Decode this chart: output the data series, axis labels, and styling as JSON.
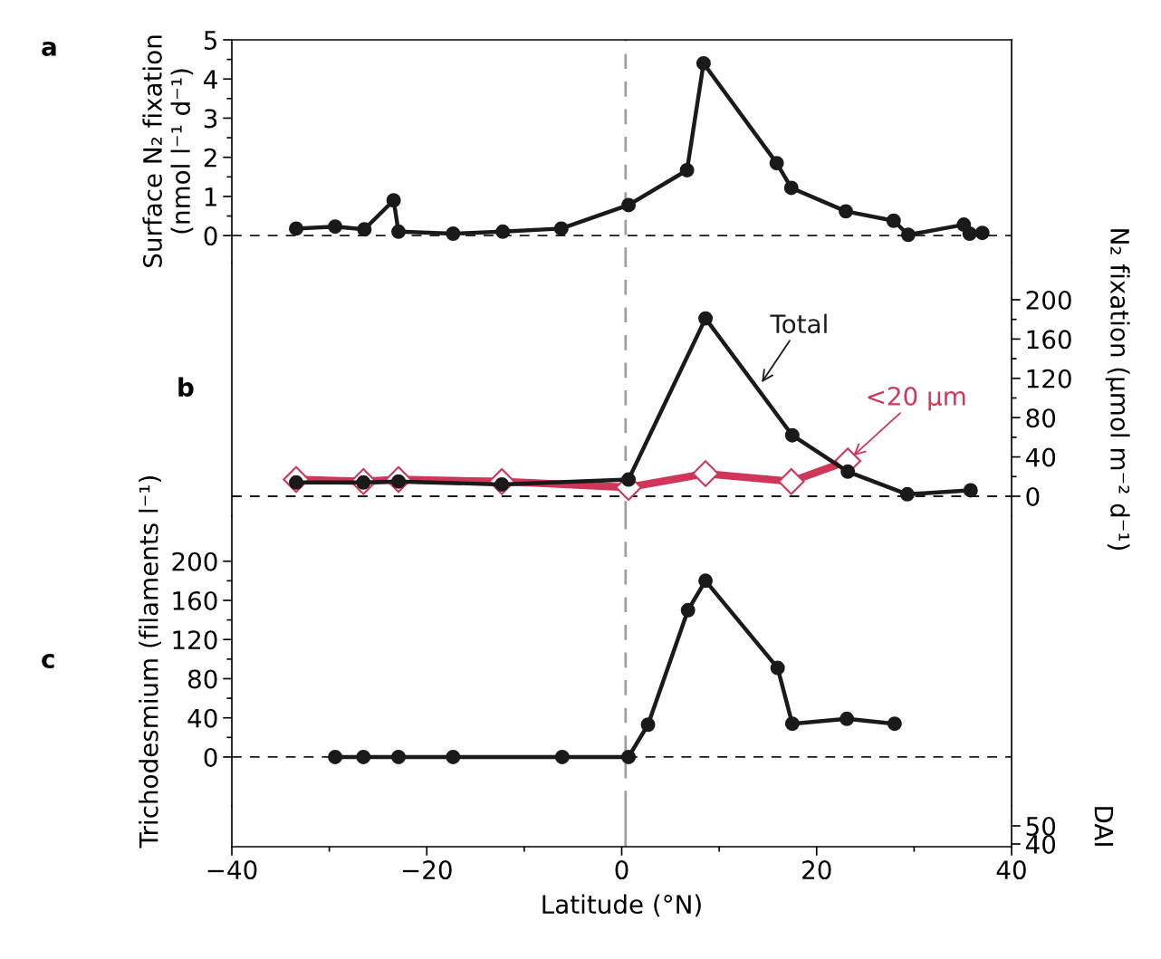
{
  "chart_data": [
    {
      "type": "line",
      "title": "a",
      "ylabel": "Surface N₂ fixation\n(nmol l⁻¹ d⁻¹)",
      "xlim": [
        -40,
        40
      ],
      "ylim": [
        -0.69,
        5
      ],
      "yticks": [
        0,
        {
          "value": 0.5,
          "label": null
        },
        1,
        {
          "value": 1.5,
          "label": null
        },
        2,
        {
          "value": 2.5,
          "label": null
        },
        3,
        {
          "value": 3.5,
          "label": null
        },
        4,
        {
          "value": 4.5,
          "label": null
        },
        5
      ],
      "tick_labels": "y",
      "marker": "circle",
      "series": [
        {
          "color": "#1a1a1a",
          "x": [
            -33.4,
            -29.4,
            -26.4,
            -23.4,
            -22.9,
            -17.3,
            -12.2,
            -6.2,
            0.7,
            6.7,
            8.4,
            15.9,
            17.4,
            23.0,
            27.9,
            29.4,
            35.1,
            35.7,
            37.0
          ],
          "values": [
            0.18,
            0.23,
            0.16,
            0.9,
            0.1,
            0.05,
            0.1,
            0.18,
            0.78,
            1.67,
            4.4,
            1.85,
            1.22,
            0.62,
            0.38,
            0.02,
            0.28,
            0.05,
            0.07
          ]
        }
      ],
      "ref_lines": [
        {
          "axis": "y",
          "value": 0,
          "color": "#1a1a1a",
          "line_style": "dashed"
        },
        {
          "axis": "x",
          "value": 0.4,
          "color": "#a0a0a0",
          "line_style": "dashed"
        }
      ]
    },
    {
      "type": "line",
      "title": "b",
      "y2label": "N₂ fixation (µmol m⁻² d⁻¹)",
      "xlim": [
        -40,
        40
      ],
      "y2lim": [
        -20.3,
        237.8
      ],
      "y2ticks": [
        0,
        {
          "value": 20,
          "label": null
        },
        40,
        {
          "value": 60,
          "label": null
        },
        80,
        {
          "value": 100,
          "label": null
        },
        120,
        {
          "value": 140,
          "label": null
        },
        160,
        {
          "value": 180,
          "label": null
        },
        200
      ],
      "tick_labels": "y2",
      "series": [
        {
          "name": "<20 µm",
          "axis": "y2",
          "marker": "diamond",
          "color": "#d0365a",
          "x": [
            -33.4,
            -26.5,
            -22.9,
            -12.3,
            0.7,
            8.6,
            17.4,
            23.2
          ],
          "values": [
            17,
            15,
            17,
            15,
            9,
            23,
            15,
            36
          ]
        },
        {
          "name": "Total",
          "axis": "y2",
          "marker": "circle",
          "color": "#1a1a1a",
          "x": [
            -33.4,
            -26.5,
            -22.9,
            -12.3,
            0.7,
            8.6,
            17.5,
            23.2,
            29.3,
            35.8
          ],
          "values": [
            14,
            14,
            15,
            12,
            17,
            181,
            62,
            25,
            2,
            6
          ]
        }
      ],
      "ref_lines": [
        {
          "axis": "y2",
          "value": 0,
          "color": "#1a1a1a",
          "line_style": "dashed"
        },
        {
          "axis": "x",
          "value": 0.4,
          "color": "#a0a0a0",
          "line_style": "dashed"
        }
      ]
    },
    {
      "type": "line",
      "title": "c",
      "ylabel": "Trichodesmium (filaments l⁻¹)",
      "xlim": [
        -40,
        40
      ],
      "ylim": [
        -50,
        246
      ],
      "yticks": [
        0,
        {
          "value": 20,
          "label": null
        },
        40,
        {
          "value": 60,
          "label": null
        },
        80,
        {
          "value": 100,
          "label": null
        },
        120,
        {
          "value": 140,
          "label": null
        },
        160,
        {
          "value": 180,
          "label": null
        },
        200
      ],
      "tick_labels": "y",
      "marker": "circle",
      "series": [
        {
          "color": "#1a1a1a",
          "x": [
            -29.4,
            -26.5,
            -22.9,
            -17.3,
            -6.1,
            0.7,
            2.7,
            6.8,
            8.6,
            16.0,
            17.5,
            23.1,
            28.0
          ],
          "values": [
            0,
            0,
            0,
            0,
            0,
            0,
            33,
            150,
            180,
            91,
            34,
            39,
            34
          ]
        }
      ],
      "ref_lines": [
        {
          "axis": "y",
          "value": 0,
          "color": "#1a1a1a",
          "line_style": "dashed"
        },
        {
          "axis": "x",
          "value": 0.4,
          "color": "#a0a0a0",
          "line_style": "dashed"
        }
      ]
    },
    {
      "type": "line",
      "xlabel": "Latitude (°N)",
      "y2label": "DAI",
      "xlim": [
        -40,
        40
      ],
      "xticks": [
        -40,
        {
          "value": -30,
          "label": null
        },
        -20,
        {
          "value": -10,
          "label": null
        },
        0,
        {
          "value": 10,
          "label": null
        },
        20,
        {
          "value": 30,
          "label": null
        },
        40
      ],
      "y2lim": [
        38.5,
        61
      ],
      "y2ticks": [
        40,
        50
      ],
      "ref_lines": [
        {
          "axis": "x",
          "value": 0.4,
          "color": "#a0a0a0",
          "line_style": "solid"
        }
      ]
    }
  ]
}
